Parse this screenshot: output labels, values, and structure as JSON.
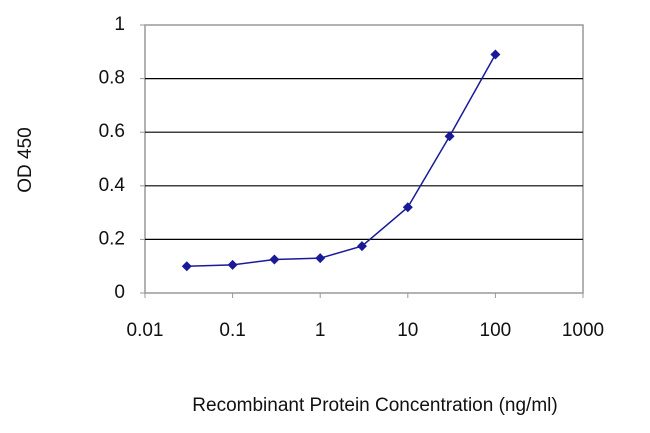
{
  "chart_data": {
    "type": "line",
    "x_label": "Recombinant Protein Concentration (ng/ml)",
    "y_label": "OD 450",
    "x": [
      0.03,
      0.1,
      0.3,
      1,
      3,
      10,
      30,
      100
    ],
    "series": [
      {
        "color": "#1a1a99",
        "values": [
          0.1,
          0.105,
          0.125,
          0.13,
          0.175,
          0.32,
          0.585,
          0.89
        ]
      }
    ],
    "xscale": "log",
    "xlim": [
      0.01,
      1000
    ],
    "xticks": [
      0.01,
      0.1,
      1,
      10,
      100,
      1000
    ],
    "ylim": [
      0,
      1
    ],
    "yticks": [
      0,
      0.2,
      0.4,
      0.6,
      0.8,
      1
    ],
    "grid": true
  }
}
